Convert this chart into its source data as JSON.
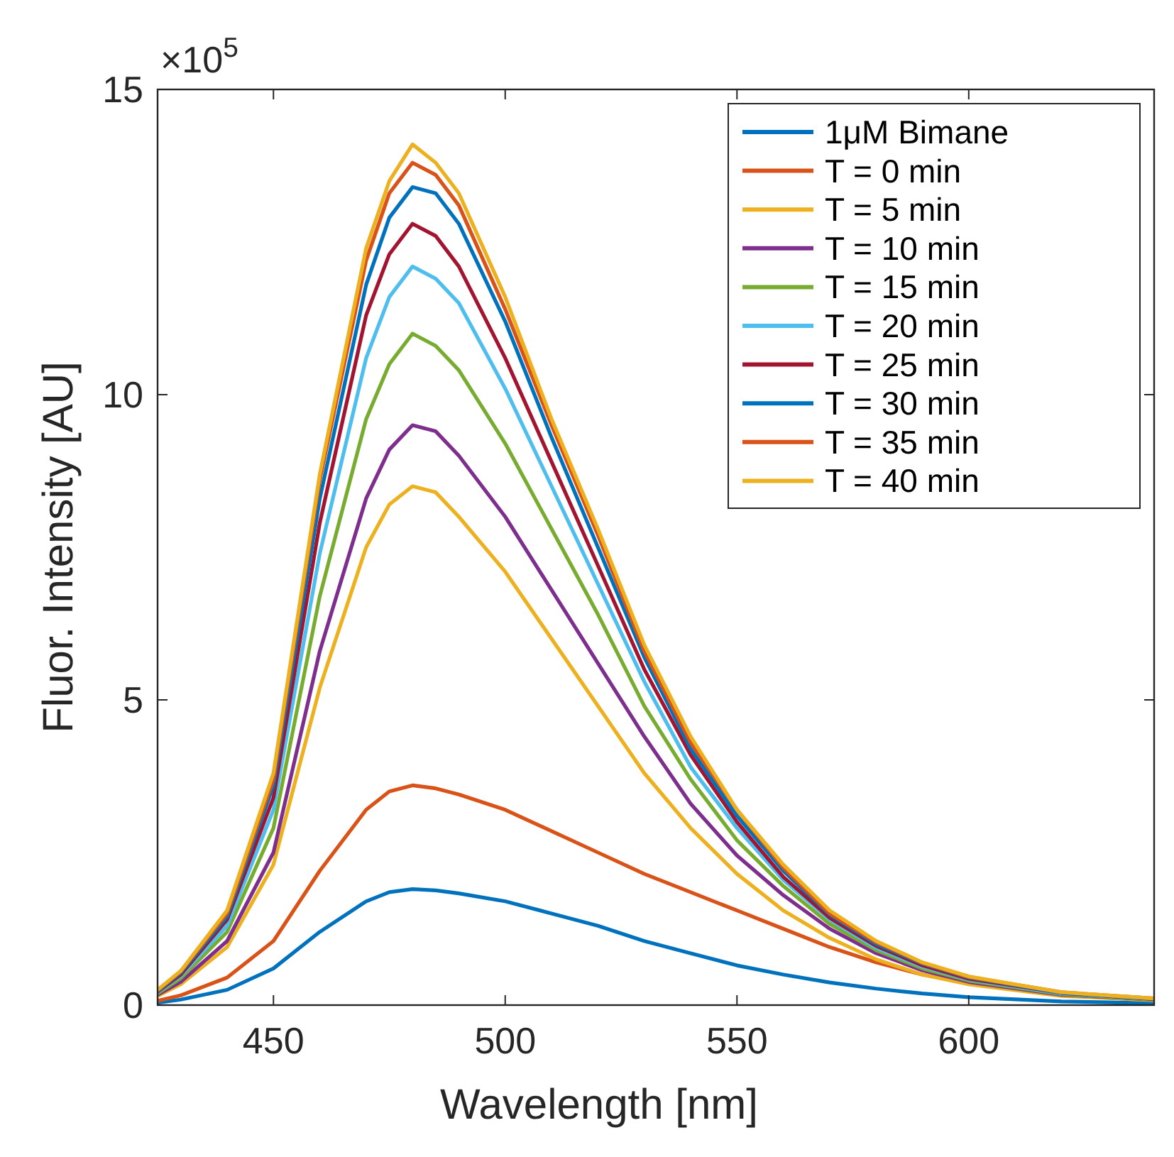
{
  "chart_data": {
    "type": "line",
    "xlabel": "Wavelength [nm]",
    "ylabel": "Fluor. Intensity [AU]",
    "annotations": [
      "×10$^{5}$"
    ],
    "xlim": [
      425,
      640
    ],
    "xticks": [
      450,
      500,
      550,
      600
    ],
    "ylim": [
      0,
      15
    ],
    "yticks": [
      0,
      5,
      10,
      15
    ],
    "grid": false,
    "legend": "top right",
    "marker": "none",
    "line_style": "solid",
    "x": [
      425,
      430,
      440,
      450,
      460,
      470,
      475,
      480,
      485,
      490,
      500,
      510,
      520,
      530,
      540,
      550,
      560,
      570,
      580,
      590,
      600,
      620,
      640
    ],
    "series": [
      {
        "name": "1μM Bimane",
        "color": "#0072bd",
        "values": [
          0.04,
          0.09,
          0.25,
          0.6,
          1.2,
          1.7,
          1.85,
          1.9,
          1.88,
          1.83,
          1.7,
          1.5,
          1.3,
          1.05,
          0.85,
          0.65,
          0.5,
          0.37,
          0.27,
          0.19,
          0.13,
          0.06,
          0.03
        ]
      },
      {
        "name": "T = 0 min",
        "color": "#d95319",
        "values": [
          0.07,
          0.16,
          0.45,
          1.05,
          2.2,
          3.2,
          3.5,
          3.6,
          3.55,
          3.45,
          3.2,
          2.85,
          2.5,
          2.15,
          1.85,
          1.55,
          1.25,
          0.95,
          0.7,
          0.5,
          0.36,
          0.17,
          0.08
        ]
      },
      {
        "name": "T = 5 min",
        "color": "#edb120",
        "values": [
          0.15,
          0.34,
          0.95,
          2.3,
          5.2,
          7.5,
          8.2,
          8.5,
          8.4,
          8.0,
          7.1,
          6.0,
          4.9,
          3.8,
          2.9,
          2.15,
          1.55,
          1.1,
          0.75,
          0.5,
          0.34,
          0.15,
          0.08
        ]
      },
      {
        "name": "T = 10 min",
        "color": "#7e2f8e",
        "values": [
          0.17,
          0.38,
          1.05,
          2.5,
          5.8,
          8.3,
          9.1,
          9.5,
          9.4,
          9.0,
          8.0,
          6.8,
          5.6,
          4.4,
          3.3,
          2.45,
          1.8,
          1.25,
          0.85,
          0.57,
          0.38,
          0.17,
          0.09
        ]
      },
      {
        "name": "T = 15 min",
        "color": "#77ac30",
        "values": [
          0.19,
          0.44,
          1.2,
          2.9,
          6.7,
          9.6,
          10.5,
          11.0,
          10.8,
          10.4,
          9.2,
          7.8,
          6.4,
          4.9,
          3.7,
          2.7,
          1.95,
          1.33,
          0.9,
          0.6,
          0.4,
          0.18,
          0.09
        ]
      },
      {
        "name": "T = 20 min",
        "color": "#4dbeee",
        "values": [
          0.21,
          0.48,
          1.3,
          3.2,
          7.4,
          10.6,
          11.6,
          12.1,
          11.9,
          11.5,
          10.1,
          8.5,
          6.9,
          5.3,
          3.9,
          2.9,
          2.05,
          1.4,
          0.94,
          0.63,
          0.42,
          0.19,
          0.1
        ]
      },
      {
        "name": "T = 25 min",
        "color": "#a2142f",
        "values": [
          0.22,
          0.5,
          1.4,
          3.4,
          7.9,
          11.3,
          12.3,
          12.8,
          12.6,
          12.1,
          10.6,
          8.9,
          7.2,
          5.5,
          4.1,
          3.0,
          2.1,
          1.43,
          0.97,
          0.65,
          0.43,
          0.2,
          0.1
        ]
      },
      {
        "name": "T = 30 min",
        "color": "#0072bd",
        "values": [
          0.23,
          0.53,
          1.45,
          3.6,
          8.3,
          11.8,
          12.9,
          13.4,
          13.3,
          12.8,
          11.2,
          9.3,
          7.5,
          5.7,
          4.2,
          3.1,
          2.2,
          1.48,
          1.0,
          0.68,
          0.45,
          0.2,
          0.1
        ]
      },
      {
        "name": "T = 35 min",
        "color": "#d95319",
        "values": [
          0.24,
          0.55,
          1.5,
          3.7,
          8.6,
          12.2,
          13.3,
          13.8,
          13.6,
          13.1,
          11.4,
          9.5,
          7.7,
          5.8,
          4.3,
          3.2,
          2.25,
          1.5,
          1.03,
          0.69,
          0.46,
          0.21,
          0.11
        ]
      },
      {
        "name": "T = 40 min",
        "color": "#edb120",
        "values": [
          0.25,
          0.56,
          1.55,
          3.8,
          8.7,
          12.4,
          13.5,
          14.1,
          13.8,
          13.3,
          11.6,
          9.6,
          7.8,
          5.9,
          4.4,
          3.2,
          2.3,
          1.55,
          1.05,
          0.7,
          0.47,
          0.21,
          0.11
        ]
      }
    ]
  }
}
